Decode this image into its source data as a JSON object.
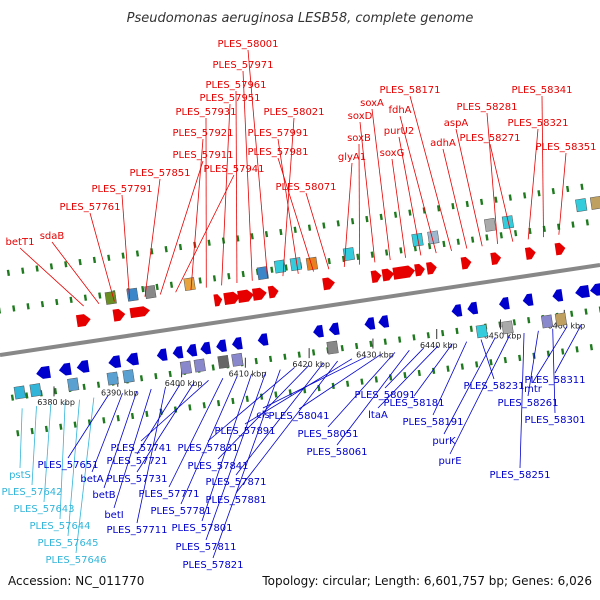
{
  "title": "Pseudomonas aeruginosa LESB58, complete genome",
  "accession": "Accession: NC_011770",
  "summary": "Topology: circular; Length: 6,601,757 bp; Genes: 6,026",
  "colors": {
    "forward": "#e60000",
    "reverse": "#0000cc",
    "light": "#33b5d9",
    "backbone": "#888888",
    "tick": "#1f7a1f"
  },
  "axis_labels": [
    "6380 kbp",
    "6390 kbp",
    "6400 kbp",
    "6410 kbp",
    "6420 kbp",
    "6430 kbp",
    "6440 kbp",
    "6450 kbp",
    "6460 kbp"
  ],
  "top_labels": [
    "betT1",
    "sdaB",
    "PLES_57761",
    "PLES_57791",
    "PLES_57851",
    "PLES_57911",
    "PLES_57941",
    "PLES_57921",
    "PLES_57931",
    "PLES_57951",
    "PLES_57961",
    "PLES_57971",
    "PLES_58001",
    "PLES_58021",
    "PLES_57991",
    "PLES_57981",
    "PLES_58071",
    "glyA1",
    "soxB",
    "soxD",
    "soxA",
    "soxG",
    "purU2",
    "fdhA",
    "PLES_58171",
    "adhA",
    "aspA",
    "PLES_58281",
    "PLES_58271",
    "PLES_58321",
    "PLES_58341",
    "PLES_58351"
  ],
  "bottom_labels": [
    "pstS",
    "PLES_57642",
    "PLES_57643",
    "PLES_57644",
    "PLES_57645",
    "PLES_57646",
    "PLES_57651",
    "betA",
    "betB",
    "betI",
    "PLES_57711",
    "PLES_57721",
    "PLES_57731",
    "PLES_57741",
    "PLES_57771",
    "PLES_57781",
    "PLES_57801",
    "PLES_57811",
    "PLES_57821",
    "PLES_57831",
    "PLES_57841",
    "PLES_57871",
    "PLES_57881",
    "PLES_57891",
    "cls",
    "PLES_58041",
    "PLES_58051",
    "PLES_58061",
    "PLES_58091",
    "ltaA",
    "PLES_58181",
    "PLES_58191",
    "PLES_58231",
    "purK",
    "purE",
    "PLES_58251",
    "PLES_58261",
    "PLES_58301",
    "mtr",
    "PLES_58311"
  ]
}
